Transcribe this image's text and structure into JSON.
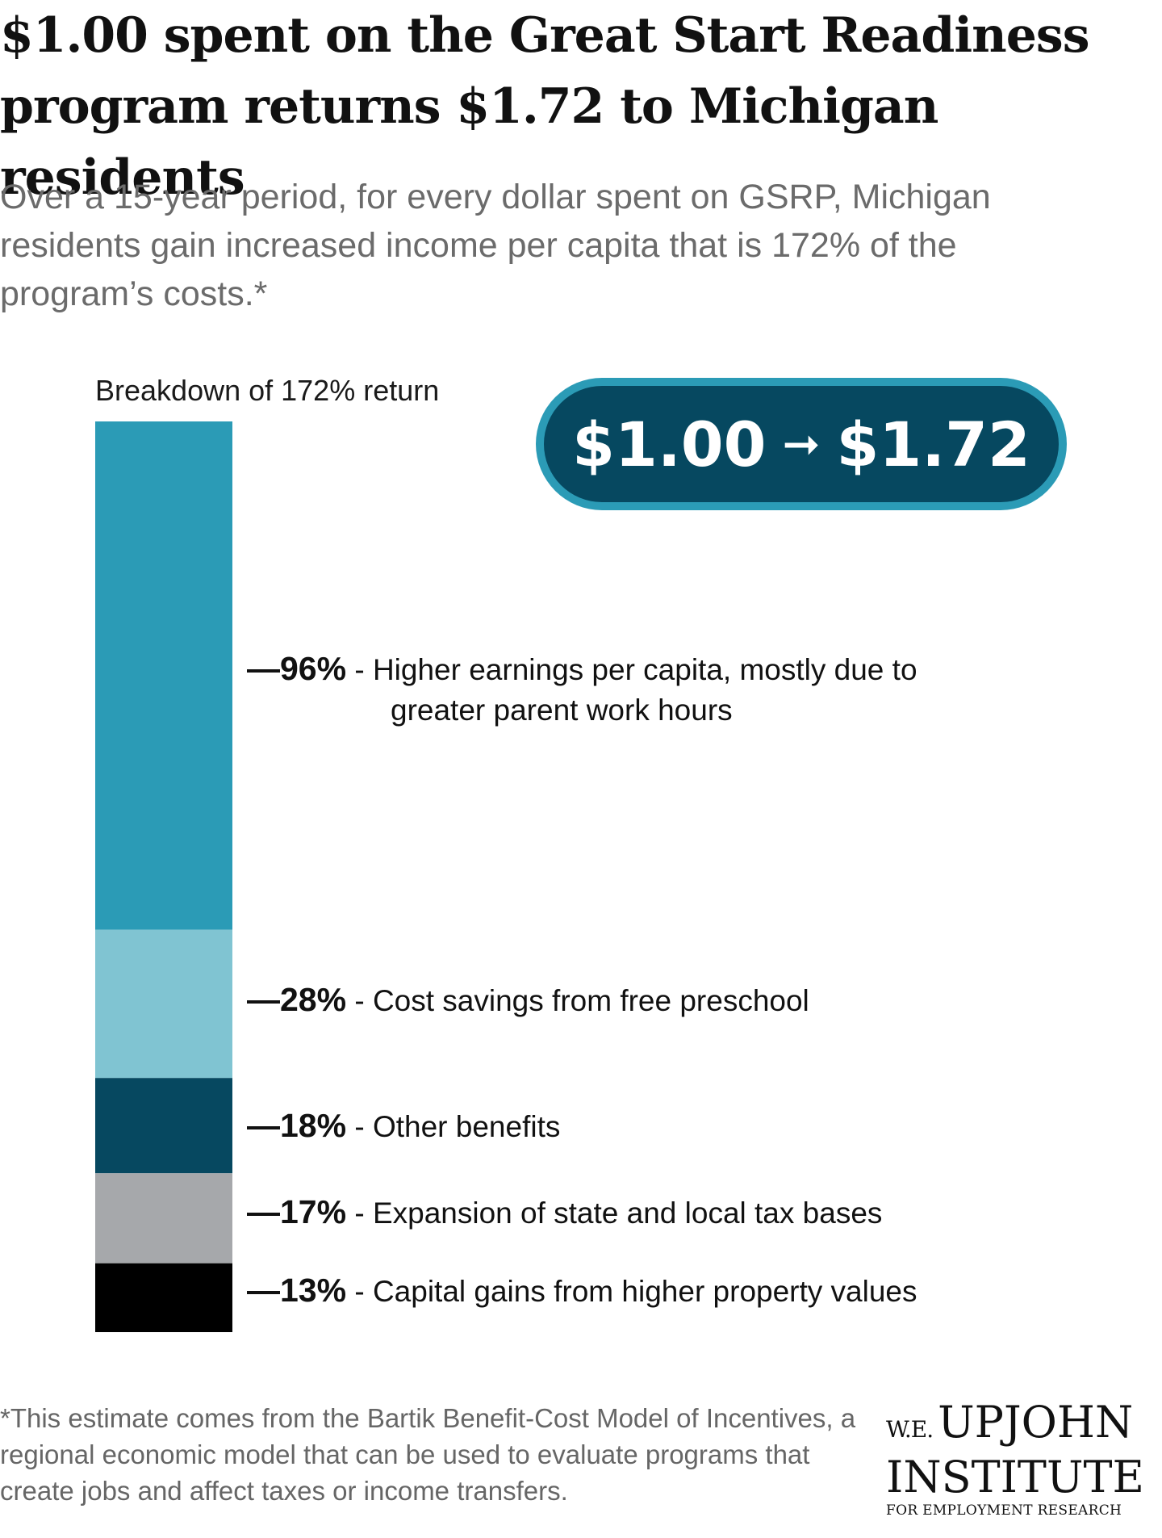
{
  "title": "$1.00 spent on the Great Start Readiness program returns $1.72 to Michigan residents",
  "subtitle": "Over a 15-year period, for every dollar spent on GSRP, Michigan residents gain increased income per capita that is 172% of the program’s costs.*",
  "callout": {
    "from": "$1.00",
    "to": "$1.72",
    "arrow_icon": "right-arrow-icon"
  },
  "chart_data": {
    "type": "bar",
    "stacked": true,
    "title": "Breakdown of 172% return",
    "total": 172,
    "segments": [
      {
        "value": 96,
        "label": "96%",
        "description": "Higher earnings per capita, mostly due to greater parent work hours",
        "description_lines": [
          "Higher earnings per capita, mostly due to",
          "greater parent work hours"
        ],
        "color": "#2b9bb6"
      },
      {
        "value": 28,
        "label": "28%",
        "description": "Cost savings from free preschool",
        "description_lines": [
          "Cost savings from free preschool"
        ],
        "color": "#80c4d2"
      },
      {
        "value": 18,
        "label": "18%",
        "description": "Other benefits",
        "description_lines": [
          "Other benefits"
        ],
        "color": "#064860"
      },
      {
        "value": 17,
        "label": "17%",
        "description": "Expansion of state and local tax bases",
        "description_lines": [
          "Expansion of state and local tax bases"
        ],
        "color": "#a6a8ab"
      },
      {
        "value": 13,
        "label": "13%",
        "description": "Capital gains from higher property values",
        "description_lines": [
          "Capital gains from higher property values"
        ],
        "color": "#000000"
      }
    ]
  },
  "footnote": "*This estimate comes from the Bartik Benefit-Cost Model of Incentives, a regional economic model that can be used to evaluate programs that create jobs and affect taxes or income transfers.",
  "logo": {
    "we": "W.E.",
    "name": "UPJOHN",
    "institute": "INSTITUTE",
    "tagline": "FOR EMPLOYMENT RESEARCH"
  }
}
